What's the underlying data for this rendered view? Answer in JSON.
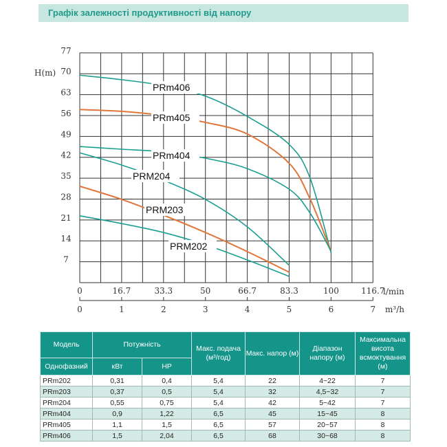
{
  "title": "Графік залежності продуктивності від напору",
  "chart_data": {
    "type": "line",
    "title": "",
    "ylabel": "H(m)",
    "xlabel": "l/min",
    "x2label": "m³/h",
    "ylim": [
      0,
      77
    ],
    "xlim_m3h": [
      0,
      7
    ],
    "yticks": [
      "77",
      "70",
      "63",
      "56",
      "49",
      "42",
      "35",
      "28",
      "21",
      "14",
      "7"
    ],
    "xticks_lmin": [
      "0",
      "16.7",
      "33.3",
      "50",
      "66.7",
      "83.3",
      "100",
      "116.7"
    ],
    "xticks_m3h": [
      "0",
      "1",
      "2",
      "3",
      "4",
      "5",
      "6",
      "7"
    ],
    "grid": true,
    "series": [
      {
        "name": "PRm406",
        "color": "#1a9e8f",
        "x": [
          0,
          1,
          2,
          3,
          4,
          5,
          5.5,
          6
        ],
        "y": [
          69.5,
          68,
          66,
          62.5,
          55.7,
          46.3,
          35,
          10
        ]
      },
      {
        "name": "PRm405",
        "color": "#e0763a",
        "x": [
          0,
          1,
          2,
          3,
          4,
          5,
          5.5,
          6
        ],
        "y": [
          58,
          57.4,
          56,
          53.7,
          49.8,
          40,
          28,
          10.5
        ]
      },
      {
        "name": "PRm404",
        "color": "#1a9e8f",
        "x": [
          0,
          1,
          2,
          3,
          4,
          5,
          5.5,
          6
        ],
        "y": [
          45.6,
          44.7,
          43.8,
          41.7,
          38.2,
          31.3,
          23.3,
          10.5
        ]
      },
      {
        "name": "PRM204",
        "color": "#1a9e8f",
        "x": [
          0,
          1,
          2,
          3,
          4,
          5
        ],
        "y": [
          43.5,
          39.4,
          34.3,
          27.9,
          18.7,
          5.8
        ]
      },
      {
        "name": "PRM203",
        "color": "#e0763a",
        "x": [
          0,
          1,
          2,
          3,
          4,
          5
        ],
        "y": [
          32.3,
          27.9,
          22.6,
          16.8,
          10.4,
          3.5
        ]
      },
      {
        "name": "PRM202",
        "color": "#1a9e8f",
        "x": [
          0,
          1,
          2,
          3,
          4,
          5
        ],
        "y": [
          22.4,
          19.8,
          16.8,
          12.7,
          7.6,
          2.1
        ]
      }
    ]
  },
  "table": {
    "headers": {
      "model": "Модель",
      "power": "Потужність",
      "flow": "Макс. подача (м³/год)",
      "head": "Макс. напор (м)",
      "range": "Діапазон напору (м)",
      "suction": "Максимальна висота всмоктування (м)",
      "phase": "Однофазний",
      "kw": "кВт",
      "hp": "HP"
    },
    "rows": [
      [
        "PRm202",
        "0,31",
        "0,4",
        "5,4",
        "22",
        "4~22",
        "7"
      ],
      [
        "PRm203",
        "0,37",
        "0,5",
        "5,4",
        "32",
        "4,5~32",
        "7"
      ],
      [
        "PRm204",
        "0,55",
        "0,75",
        "5,4",
        "42",
        "5~42",
        "7"
      ],
      [
        "PRm404",
        "0,9",
        "1,22",
        "6,5",
        "45",
        "15~45",
        "8"
      ],
      [
        "PRm405",
        "1,1",
        "1,5",
        "6,5",
        "57",
        "20~57",
        "8"
      ],
      [
        "PRm406",
        "1,5",
        "2,04",
        "6,5",
        "68",
        "30~68",
        "8"
      ]
    ]
  }
}
